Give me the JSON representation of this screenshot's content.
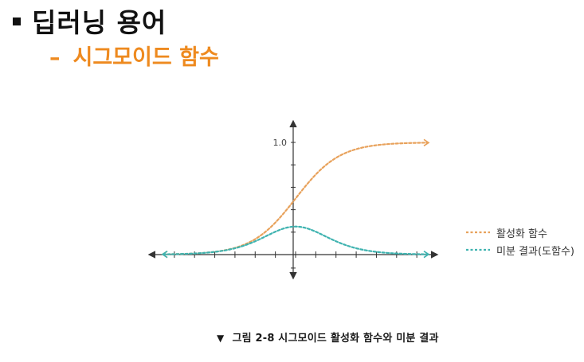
{
  "heading": {
    "title": "딥러닝 용어",
    "subtitle": "시그모이드 함수",
    "subtitle_dash": "–"
  },
  "figure": {
    "caption_marker": "▼",
    "caption": "그림 2-8 시그모이드 활성화 함수와 미분 결과"
  },
  "chart_data": {
    "type": "line",
    "title": "",
    "xlabel": "",
    "ylabel": "",
    "y_tick_labels": [
      "1.0"
    ],
    "x_range": [
      -6,
      6
    ],
    "ylim": [
      0,
      1
    ],
    "grid": false,
    "legend_position": "right",
    "series": [
      {
        "name": "활성화 함수",
        "color": "#e8a25c",
        "style": "dotted",
        "x": [
          -6,
          -5,
          -4,
          -3,
          -2,
          -1,
          0,
          1,
          2,
          3,
          4,
          5,
          6
        ],
        "y": [
          0.002,
          0.007,
          0.018,
          0.047,
          0.119,
          0.269,
          0.5,
          0.731,
          0.881,
          0.953,
          0.982,
          0.993,
          0.998
        ]
      },
      {
        "name": "미분 결과(도함수)",
        "color": "#3fb3b0",
        "style": "dotted",
        "x": [
          -6,
          -5,
          -4,
          -3,
          -2,
          -1,
          0,
          1,
          2,
          3,
          4,
          5,
          6
        ],
        "y": [
          0.002,
          0.007,
          0.018,
          0.045,
          0.105,
          0.197,
          0.25,
          0.197,
          0.105,
          0.045,
          0.018,
          0.007,
          0.002
        ]
      }
    ]
  },
  "colors": {
    "accent": "#ee8a1f",
    "sigmoid": "#e8a25c",
    "derivative": "#3fb3b0",
    "axis": "#333333"
  }
}
